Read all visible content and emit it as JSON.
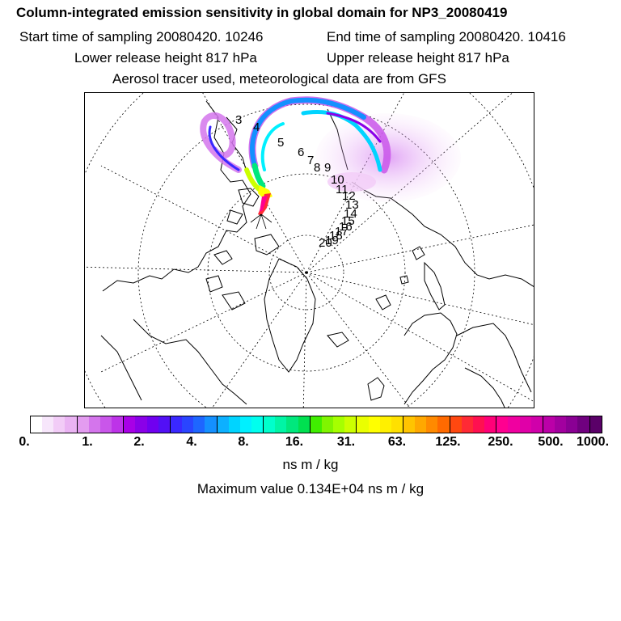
{
  "header": {
    "title": "Column-integrated emission sensitivity in global domain for NP3_20080419",
    "start_time": "Start time of sampling 20080420. 10246",
    "end_time": "End time of sampling 20080420. 10416",
    "lower_release": "Lower release height  817 hPa",
    "upper_release": "Upper release height  817 hPa",
    "tracer_note": "Aerosol tracer used, meteorological data are from GFS"
  },
  "map": {
    "track_labels": [
      "3",
      "4",
      "5",
      "6",
      "7",
      "8",
      "9",
      "10",
      "11",
      "12",
      "13",
      "14",
      "15",
      "16",
      "17",
      "18",
      "19",
      "20"
    ]
  },
  "colorbar": {
    "colors": [
      "#ffffff",
      "#f7e6fb",
      "#f2ccf7",
      "#eab3f3",
      "#e39cf0",
      "#d475ec",
      "#c956ea",
      "#bd33e8",
      "#a800e6",
      "#8a00e8",
      "#7000f0",
      "#5210f5",
      "#3a28ff",
      "#2a45ff",
      "#1e66ff",
      "#1490ff",
      "#0db0ff",
      "#00d4ff",
      "#00f0ff",
      "#00ffee",
      "#00ffcc",
      "#00f5a5",
      "#00e87d",
      "#00e050",
      "#40ee00",
      "#80f500",
      "#a6ff00",
      "#ccff00",
      "#eaff00",
      "#ffff00",
      "#fff000",
      "#ffe000",
      "#ffc400",
      "#ffa800",
      "#ff8a00",
      "#ff6a00",
      "#ff4810",
      "#ff2a35",
      "#ff1050",
      "#ff0078",
      "#ff0090",
      "#f000a0",
      "#e000a8",
      "#d000aa",
      "#bb00a8",
      "#a2009f",
      "#8a0094",
      "#70007f",
      "#5a0068"
    ],
    "tick_labels": [
      "0.",
      "1.",
      "2.",
      "4.",
      "8.",
      "16.",
      "31.",
      "63.",
      "125.",
      "250.",
      "500.",
      "1000."
    ],
    "unit": "ns m / kg",
    "max_value": "Maximum value  0.134E+04 ns m / kg"
  }
}
